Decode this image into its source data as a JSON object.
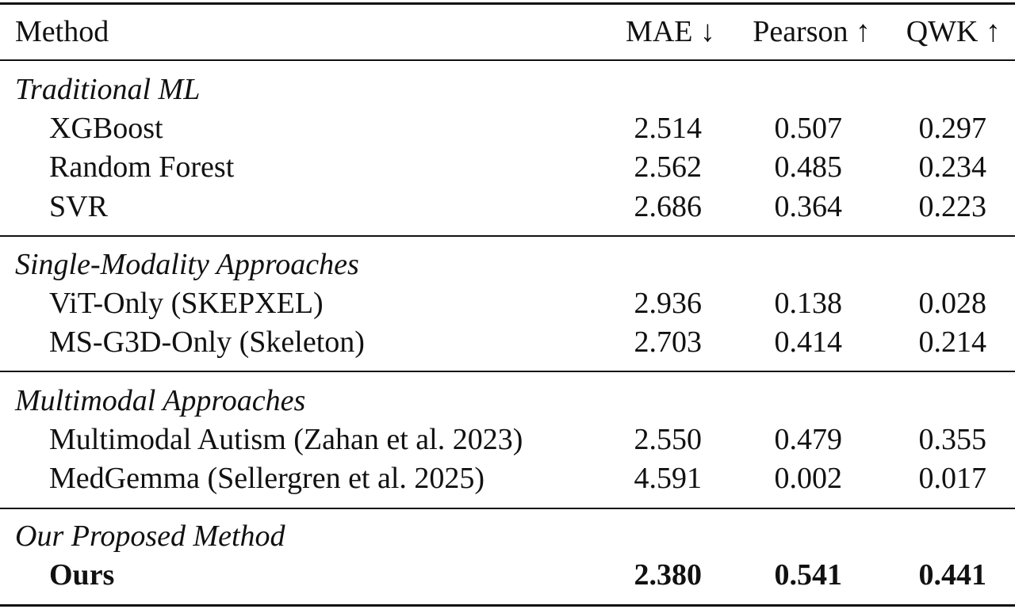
{
  "header": {
    "method": "Method",
    "mae": "MAE ↓",
    "pearson": "Pearson ↑",
    "qwk": "QWK ↑"
  },
  "groups": [
    {
      "title": "Traditional ML",
      "rows": [
        {
          "method": "XGBoost",
          "mae": "2.514",
          "pearson": "0.507",
          "qwk": "0.297"
        },
        {
          "method": "Random Forest",
          "mae": "2.562",
          "pearson": "0.485",
          "qwk": "0.234"
        },
        {
          "method": "SVR",
          "mae": "2.686",
          "pearson": "0.364",
          "qwk": "0.223"
        }
      ]
    },
    {
      "title": "Single-Modality Approaches",
      "rows": [
        {
          "method": "ViT-Only (SKEPXEL)",
          "mae": "2.936",
          "pearson": "0.138",
          "qwk": "0.028"
        },
        {
          "method": "MS-G3D-Only (Skeleton)",
          "mae": "2.703",
          "pearson": "0.414",
          "qwk": "0.214"
        }
      ]
    },
    {
      "title": "Multimodal Approaches",
      "rows": [
        {
          "method": "Multimodal Autism (Zahan et al. 2023)",
          "mae": "2.550",
          "pearson": "0.479",
          "qwk": "0.355"
        },
        {
          "method": "MedGemma (Sellergren et al. 2025)",
          "mae": "4.591",
          "pearson": "0.002",
          "qwk": "0.017"
        }
      ]
    },
    {
      "title": "Our Proposed Method",
      "rows": [
        {
          "method": "Ours",
          "mae": "2.380",
          "pearson": "0.541",
          "qwk": "0.441"
        }
      ]
    }
  ]
}
